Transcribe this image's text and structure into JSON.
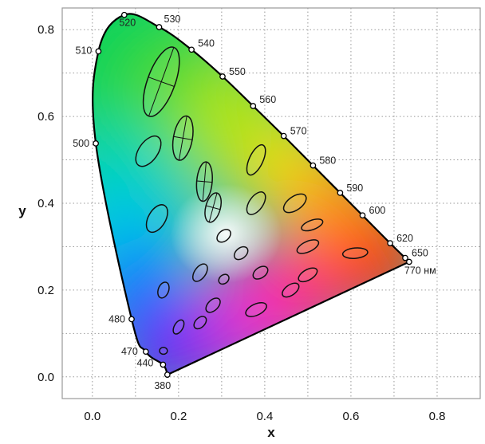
{
  "chart_data": {
    "type": "scatter",
    "title": "",
    "xlabel": "x",
    "ylabel": "y",
    "xlim": [
      -0.07,
      0.9
    ],
    "ylim": [
      -0.05,
      0.85
    ],
    "x_ticks": [
      {
        "value": 0.0,
        "label": "0.0"
      },
      {
        "value": 0.2,
        "label": "0.2"
      },
      {
        "value": 0.4,
        "label": "0.4"
      },
      {
        "value": 0.6,
        "label": "0.6"
      },
      {
        "value": 0.8,
        "label": "0.8"
      }
    ],
    "y_ticks": [
      {
        "value": 0.0,
        "label": "0.0"
      },
      {
        "value": 0.2,
        "label": "0.2"
      },
      {
        "value": 0.4,
        "label": "0.4"
      },
      {
        "value": 0.6,
        "label": "0.6"
      },
      {
        "value": 0.8,
        "label": "0.8"
      }
    ],
    "grid": true,
    "grid_step": 0.1,
    "spectral_locus": [
      {
        "label": "380",
        "x": 0.174,
        "y": 0.005
      },
      {
        "label": "440",
        "x": 0.164,
        "y": 0.028
      },
      {
        "label": "470",
        "x": 0.124,
        "y": 0.058
      },
      {
        "label": "480",
        "x": 0.091,
        "y": 0.133
      },
      {
        "label": "500",
        "x": 0.008,
        "y": 0.538
      },
      {
        "label": "510",
        "x": 0.014,
        "y": 0.75
      },
      {
        "label": "520",
        "x": 0.074,
        "y": 0.834
      },
      {
        "label": "530",
        "x": 0.155,
        "y": 0.806
      },
      {
        "label": "540",
        "x": 0.23,
        "y": 0.754
      },
      {
        "label": "550",
        "x": 0.302,
        "y": 0.692
      },
      {
        "label": "560",
        "x": 0.373,
        "y": 0.624
      },
      {
        "label": "570",
        "x": 0.444,
        "y": 0.555
      },
      {
        "label": "580",
        "x": 0.512,
        "y": 0.487
      },
      {
        "label": "590",
        "x": 0.575,
        "y": 0.424
      },
      {
        "label": "600",
        "x": 0.627,
        "y": 0.372
      },
      {
        "label": "620",
        "x": 0.691,
        "y": 0.308
      },
      {
        "label": "650",
        "x": 0.726,
        "y": 0.274
      },
      {
        "label": "770 нм",
        "x": 0.735,
        "y": 0.265
      }
    ],
    "ellipses": [
      {
        "x": 0.16,
        "y": 0.68,
        "rx": 0.085,
        "ry": 0.032,
        "angle": 70
      },
      {
        "x": 0.13,
        "y": 0.52,
        "rx": 0.04,
        "ry": 0.022,
        "angle": 55
      },
      {
        "x": 0.21,
        "y": 0.55,
        "rx": 0.052,
        "ry": 0.022,
        "angle": 80
      },
      {
        "x": 0.26,
        "y": 0.45,
        "rx": 0.046,
        "ry": 0.018,
        "angle": 85
      },
      {
        "x": 0.28,
        "y": 0.39,
        "rx": 0.035,
        "ry": 0.017,
        "angle": 75
      },
      {
        "x": 0.38,
        "y": 0.5,
        "rx": 0.038,
        "ry": 0.016,
        "angle": 65
      },
      {
        "x": 0.38,
        "y": 0.4,
        "rx": 0.03,
        "ry": 0.016,
        "angle": 55
      },
      {
        "x": 0.47,
        "y": 0.4,
        "rx": 0.03,
        "ry": 0.016,
        "angle": 35
      },
      {
        "x": 0.15,
        "y": 0.365,
        "rx": 0.035,
        "ry": 0.02,
        "angle": 60
      },
      {
        "x": 0.305,
        "y": 0.325,
        "rx": 0.018,
        "ry": 0.012,
        "angle": 40
      },
      {
        "x": 0.345,
        "y": 0.285,
        "rx": 0.018,
        "ry": 0.012,
        "angle": 40
      },
      {
        "x": 0.51,
        "y": 0.35,
        "rx": 0.026,
        "ry": 0.011,
        "angle": 20
      },
      {
        "x": 0.5,
        "y": 0.3,
        "rx": 0.027,
        "ry": 0.012,
        "angle": 25
      },
      {
        "x": 0.61,
        "y": 0.285,
        "rx": 0.029,
        "ry": 0.012,
        "angle": 5
      },
      {
        "x": 0.25,
        "y": 0.24,
        "rx": 0.023,
        "ry": 0.013,
        "angle": 55
      },
      {
        "x": 0.305,
        "y": 0.225,
        "rx": 0.013,
        "ry": 0.01,
        "angle": 40
      },
      {
        "x": 0.39,
        "y": 0.24,
        "rx": 0.019,
        "ry": 0.012,
        "angle": 35
      },
      {
        "x": 0.5,
        "y": 0.235,
        "rx": 0.024,
        "ry": 0.012,
        "angle": 30
      },
      {
        "x": 0.165,
        "y": 0.2,
        "rx": 0.019,
        "ry": 0.012,
        "angle": 70
      },
      {
        "x": 0.46,
        "y": 0.2,
        "rx": 0.022,
        "ry": 0.012,
        "angle": 35
      },
      {
        "x": 0.28,
        "y": 0.165,
        "rx": 0.02,
        "ry": 0.012,
        "angle": 45
      },
      {
        "x": 0.38,
        "y": 0.155,
        "rx": 0.026,
        "ry": 0.013,
        "angle": 25
      },
      {
        "x": 0.2,
        "y": 0.115,
        "rx": 0.018,
        "ry": 0.01,
        "angle": 60
      },
      {
        "x": 0.25,
        "y": 0.125,
        "rx": 0.017,
        "ry": 0.011,
        "angle": 45
      },
      {
        "x": 0.165,
        "y": 0.06,
        "rx": 0.009,
        "ry": 0.008,
        "angle": 0
      }
    ],
    "crosshair_ellipses": [
      0,
      2,
      3,
      4
    ]
  }
}
